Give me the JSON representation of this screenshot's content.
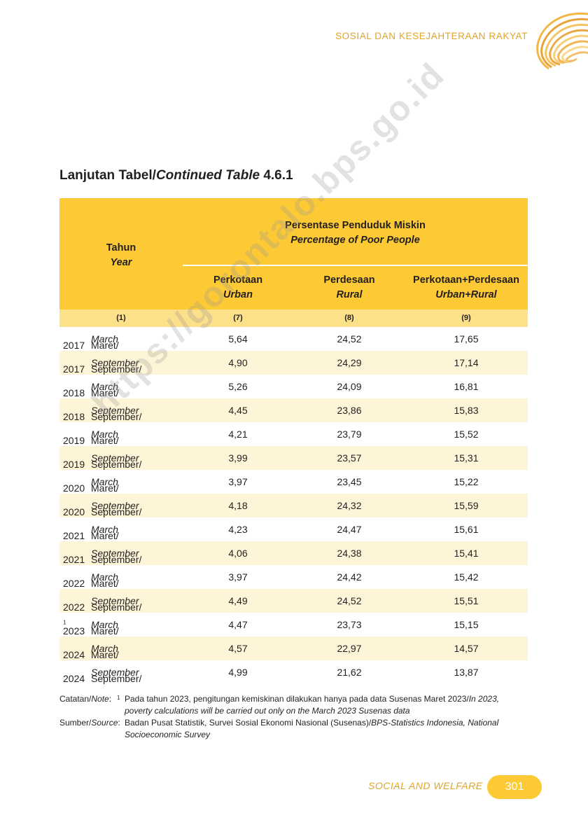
{
  "header": {
    "title": "SOSIAL DAN KESEJAHTERAAN RAKYAT"
  },
  "table_title": {
    "prefix": "Lanjutan Tabel/",
    "italic": "Continued Table",
    "number": " 4.6.1"
  },
  "watermark": "https://gorontalo.bps.go.id",
  "table": {
    "col_year": {
      "id": "Tahun",
      "en": "Year"
    },
    "group": {
      "id": "Persentase Penduduk Miskin",
      "en": "Percentage of Poor People"
    },
    "col_urban": {
      "id": "Perkotaan",
      "en": "Urban"
    },
    "col_rural": {
      "id": "Perdesaan",
      "en": "Rural"
    },
    "col_total": {
      "id": "Perkotaan+Perdesaan",
      "en": "Urban+Rural"
    },
    "col_numbers": [
      "(1)",
      "(7)",
      "(8)",
      "(9)"
    ],
    "rows": [
      {
        "year": "2017",
        "sup": "",
        "period_id": "Maret/",
        "period_en": "March",
        "urban": "5,64",
        "rural": "24,52",
        "total": "17,65"
      },
      {
        "year": "2017",
        "sup": "",
        "period_id": "September/",
        "period_en": "September",
        "urban": "4,90",
        "rural": "24,29",
        "total": "17,14"
      },
      {
        "year": "2018",
        "sup": "",
        "period_id": "Maret/",
        "period_en": "March",
        "urban": "5,26",
        "rural": "24,09",
        "total": "16,81"
      },
      {
        "year": "2018",
        "sup": "",
        "period_id": "September/",
        "period_en": "September",
        "urban": "4,45",
        "rural": "23,86",
        "total": "15,83"
      },
      {
        "year": "2019",
        "sup": "",
        "period_id": "Maret/",
        "period_en": "March",
        "urban": "4,21",
        "rural": "23,79",
        "total": "15,52"
      },
      {
        "year": "2019",
        "sup": "",
        "period_id": "September/",
        "period_en": "September",
        "urban": "3,99",
        "rural": "23,57",
        "total": "15,31"
      },
      {
        "year": "2020",
        "sup": "",
        "period_id": "Maret/",
        "period_en": "March",
        "urban": "3,97",
        "rural": "23,45",
        "total": "15,22"
      },
      {
        "year": "2020",
        "sup": "",
        "period_id": "September/",
        "period_en": "September",
        "urban": "4,18",
        "rural": "24,32",
        "total": "15,59"
      },
      {
        "year": "2021",
        "sup": "",
        "period_id": "Maret/",
        "period_en": "March",
        "urban": "4,23",
        "rural": "24,47",
        "total": "15,61"
      },
      {
        "year": "2021",
        "sup": "",
        "period_id": "September/",
        "period_en": "September",
        "urban": "4,06",
        "rural": "24,38",
        "total": "15,41"
      },
      {
        "year": "2022",
        "sup": "",
        "period_id": "Maret/",
        "period_en": "March",
        "urban": "3,97",
        "rural": "24,42",
        "total": "15,42"
      },
      {
        "year": "2022",
        "sup": "",
        "period_id": "September/",
        "period_en": "September",
        "urban": "4,49",
        "rural": "24,52",
        "total": "15,51"
      },
      {
        "year": "2023",
        "sup": "1",
        "period_id": "Maret/",
        "period_en": "March",
        "urban": "4,47",
        "rural": "23,73",
        "total": "15,15"
      },
      {
        "year": "2024",
        "sup": "",
        "period_id": "Maret/",
        "period_en": "March",
        "urban": "4,57",
        "rural": "22,97",
        "total": "14,57"
      },
      {
        "year": "2024",
        "sup": "",
        "period_id": "September/",
        "period_en": "September",
        "urban": "4,99",
        "rural": "21,62",
        "total": "13,87"
      }
    ]
  },
  "notes": {
    "note_label_id": "Catatan/",
    "note_label_en": "Note",
    "note_label_colon": ":",
    "note_sup": "1",
    "note_text_id": "Pada tahun 2023, pengitungan kemiskinan dilakukan hanya pada data Susenas Maret 2023/",
    "note_text_en": "In 2023, poverty calculations will be carried out only on the March 2023 Susenas data",
    "source_label_id": "Sumber/",
    "source_label_en": "Source",
    "source_label_colon": ":",
    "source_text_id": "Badan Pusat Statistik, Survei Sosial Ekonomi Nasional (Susenas)/",
    "source_text_en": "BPS-Statistics Indonesia, National Socioeconomic Survey"
  },
  "footer": {
    "section": "SOCIAL AND WELFARE",
    "page_number": "301"
  },
  "colors": {
    "accent": "#fdca35",
    "accent_light": "#fde08a",
    "row_alt": "#fef5d8",
    "header_text": "#e0a42a"
  }
}
